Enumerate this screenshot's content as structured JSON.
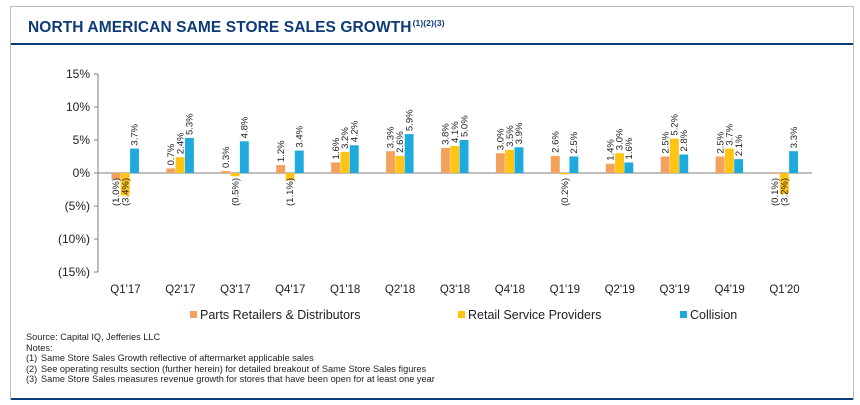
{
  "title": "NORTH AMERICAN SAME STORE SALES GROWTH",
  "title_notes": "(1)(2)(3)",
  "colors": {
    "title": "#0d3b78",
    "parts": "#f4a15d",
    "retail": "#ffc414",
    "collision": "#1eaadd"
  },
  "chart_data": {
    "type": "bar",
    "categories": [
      "Q1'17",
      "Q2'17",
      "Q3'17",
      "Q4'17",
      "Q1'18",
      "Q2'18",
      "Q3'18",
      "Q4'18",
      "Q1'19",
      "Q2'19",
      "Q3'19",
      "Q4'19",
      "Q1'20"
    ],
    "series": [
      {
        "name": "Parts Retailers & Distributors",
        "color": "#f4a15d",
        "values": [
          -1.0,
          0.7,
          0.3,
          1.2,
          1.6,
          3.3,
          3.8,
          3.0,
          2.6,
          1.4,
          2.5,
          2.5,
          -0.1
        ],
        "labels": [
          "(1.0%)",
          "0.7%",
          "0.3%",
          "1.2%",
          "1.6%",
          "3.3%",
          "3.8%",
          "3.0%",
          "2.6%",
          "1.4%",
          "2.5%",
          "2.5%",
          "(0.1%)"
        ]
      },
      {
        "name": "Retail Service Providers",
        "color": "#ffc414",
        "values": [
          -3.4,
          2.4,
          -0.5,
          -1.1,
          3.2,
          2.6,
          4.1,
          3.5,
          -0.2,
          3.0,
          5.2,
          3.7,
          -3.2
        ],
        "labels": [
          "(3.4%)",
          "2.4%",
          "(0.5%)",
          "(1.1%)",
          "3.2%",
          "2.6%",
          "4.1%",
          "3.5%",
          "(0.2%)",
          "3.0%",
          "5.2%",
          "3.7%",
          "(3.2%)"
        ]
      },
      {
        "name": "Collision",
        "color": "#1eaadd",
        "values": [
          3.7,
          5.3,
          4.8,
          3.4,
          4.2,
          5.9,
          5.0,
          3.9,
          2.5,
          1.6,
          2.8,
          2.1,
          3.3
        ],
        "labels": [
          "3.7%",
          "5.3%",
          "4.8%",
          "3.4%",
          "4.2%",
          "5.9%",
          "5.0%",
          "3.9%",
          "2.5%",
          "1.6%",
          "2.8%",
          "2.1%",
          "3.3%"
        ]
      }
    ],
    "ylim": [
      -15,
      15
    ],
    "yticks": [
      15,
      10,
      5,
      0,
      -5,
      -10,
      -15
    ],
    "ytick_labels": [
      "15%",
      "10%",
      "5%",
      "0%",
      "(5%)",
      "(10%)",
      "(15%)"
    ],
    "legend_position": "bottom",
    "grid": false
  },
  "source": "Source: Capital IQ, Jefferies LLC",
  "notes_heading": "Notes:",
  "notes": [
    {
      "num": "(1)",
      "text": "Same Store Sales Growth reflective of aftermarket applicable sales"
    },
    {
      "num": "(2)",
      "text": "See operating results section (further herein) for detailed breakout of Same Store Sales figures"
    },
    {
      "num": "(3)",
      "text": "Same Store Sales measures revenue growth for stores that have been open for at least one year"
    }
  ]
}
